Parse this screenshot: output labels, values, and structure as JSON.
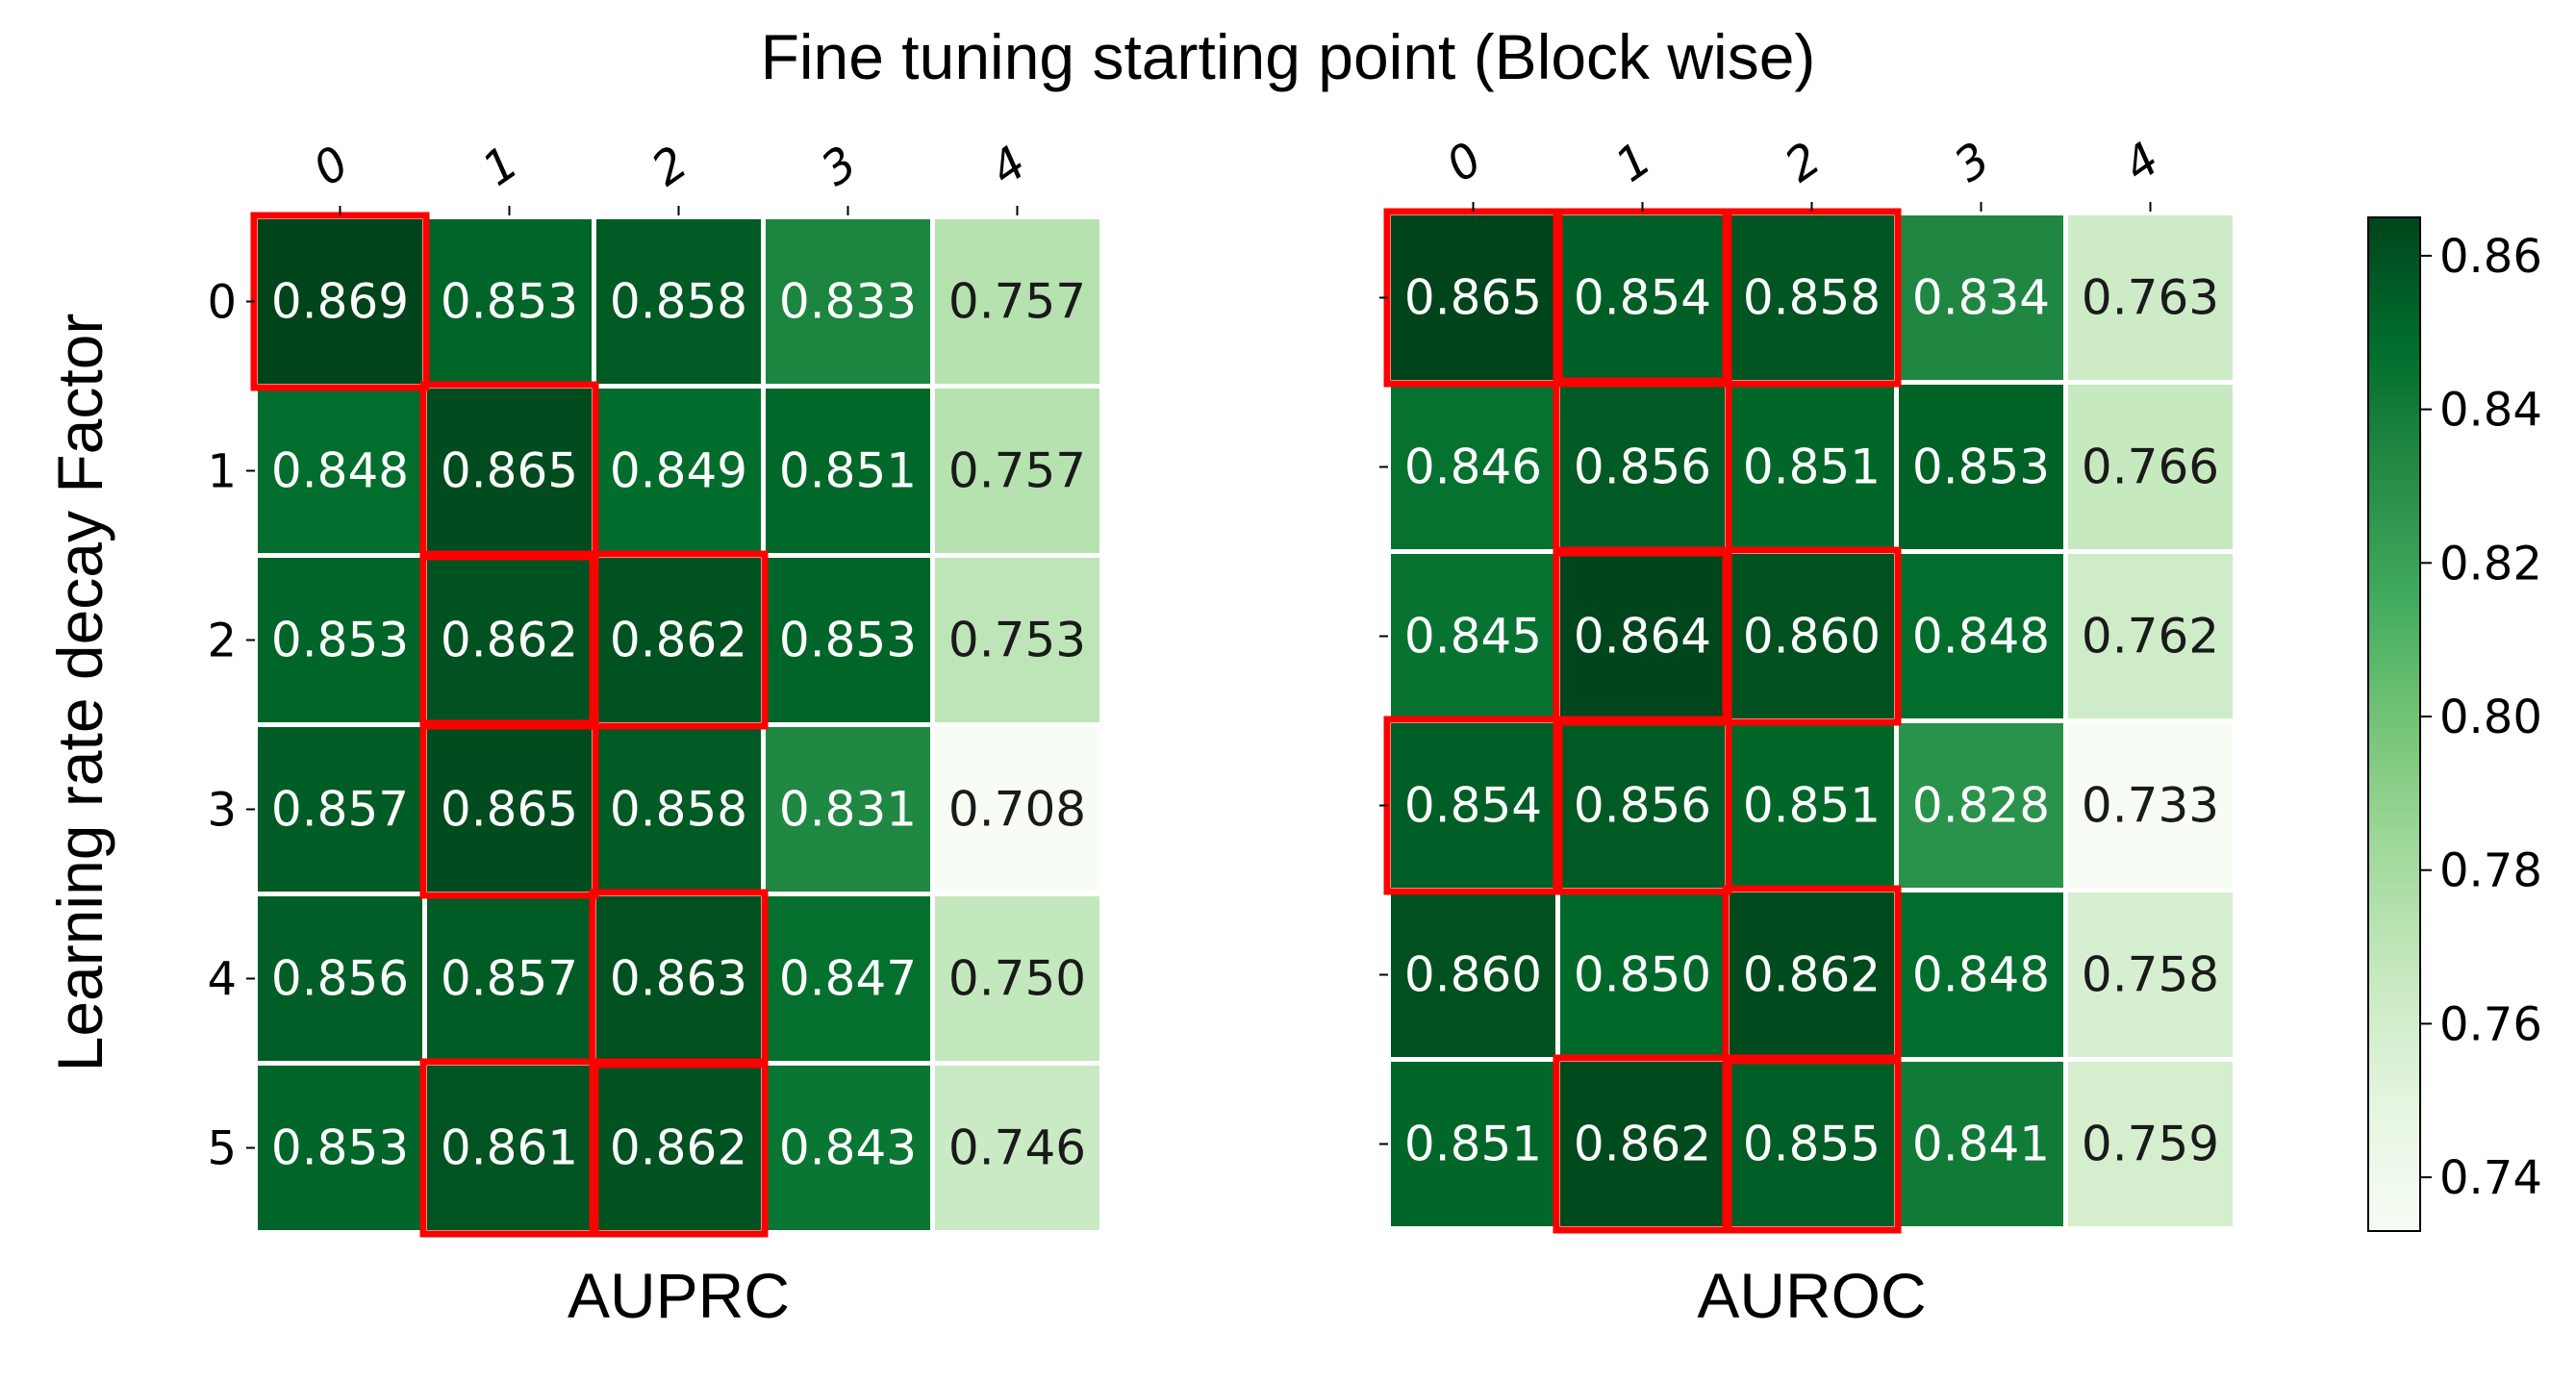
{
  "figure": {
    "title": "Fine tuning starting point (Block wise)",
    "ylabel": "Learning rate decay Factor"
  },
  "chart_data": [
    {
      "type": "heatmap",
      "title": "AUPRC",
      "x_categories": [
        "0",
        "1",
        "2",
        "3",
        "4"
      ],
      "y_categories": [
        "0",
        "1",
        "2",
        "3",
        "4",
        "5"
      ],
      "values": [
        [
          0.869,
          0.853,
          0.858,
          0.833,
          0.757
        ],
        [
          0.848,
          0.865,
          0.849,
          0.851,
          0.757
        ],
        [
          0.853,
          0.862,
          0.862,
          0.853,
          0.753
        ],
        [
          0.857,
          0.865,
          0.858,
          0.831,
          0.708
        ],
        [
          0.856,
          0.857,
          0.863,
          0.847,
          0.75
        ],
        [
          0.853,
          0.861,
          0.862,
          0.843,
          0.746
        ]
      ],
      "labels": [
        [
          "0.869",
          "0.853",
          "0.858",
          "0.833",
          "0.757"
        ],
        [
          "0.848",
          "0.865",
          "0.849",
          "0.851",
          "0.757"
        ],
        [
          "0.853",
          "0.862",
          "0.862",
          "0.853",
          "0.753"
        ],
        [
          "0.857",
          "0.865",
          "0.858",
          "0.831",
          "0.708"
        ],
        [
          "0.856",
          "0.857",
          "0.863",
          "0.847",
          "0.750"
        ],
        [
          "0.853",
          "0.861",
          "0.862",
          "0.843",
          "0.746"
        ]
      ],
      "highlighted_cells": [
        [
          0,
          0
        ],
        [
          1,
          1
        ],
        [
          2,
          1
        ],
        [
          2,
          2
        ],
        [
          3,
          1
        ],
        [
          4,
          2
        ],
        [
          5,
          1
        ],
        [
          5,
          2
        ]
      ],
      "highlight_color": "#ff0000",
      "colormap": "Greens",
      "vmin": 0.708,
      "vmax": 0.869
    },
    {
      "type": "heatmap",
      "title": "AUROC",
      "x_categories": [
        "0",
        "1",
        "2",
        "3",
        "4"
      ],
      "y_categories": [
        "0",
        "1",
        "2",
        "3",
        "4",
        "5"
      ],
      "values": [
        [
          0.865,
          0.854,
          0.858,
          0.834,
          0.763
        ],
        [
          0.846,
          0.856,
          0.851,
          0.853,
          0.766
        ],
        [
          0.845,
          0.864,
          0.86,
          0.848,
          0.762
        ],
        [
          0.854,
          0.856,
          0.851,
          0.828,
          0.733
        ],
        [
          0.86,
          0.85,
          0.862,
          0.848,
          0.758
        ],
        [
          0.851,
          0.862,
          0.855,
          0.841,
          0.759
        ]
      ],
      "labels": [
        [
          "0.865",
          "0.854",
          "0.858",
          "0.834",
          "0.763"
        ],
        [
          "0.846",
          "0.856",
          "0.851",
          "0.853",
          "0.766"
        ],
        [
          "0.845",
          "0.864",
          "0.860",
          "0.848",
          "0.762"
        ],
        [
          "0.854",
          "0.856",
          "0.851",
          "0.828",
          "0.733"
        ],
        [
          "0.860",
          "0.850",
          "0.862",
          "0.848",
          "0.758"
        ],
        [
          "0.851",
          "0.862",
          "0.855",
          "0.841",
          "0.759"
        ]
      ],
      "highlighted_cells": [
        [
          0,
          0
        ],
        [
          0,
          1
        ],
        [
          0,
          2
        ],
        [
          1,
          1
        ],
        [
          2,
          1
        ],
        [
          2,
          2
        ],
        [
          3,
          0
        ],
        [
          3,
          1
        ],
        [
          4,
          2
        ],
        [
          5,
          1
        ],
        [
          5,
          2
        ]
      ],
      "highlight_color": "#ff0000",
      "colormap": "Greens",
      "vmin": 0.733,
      "vmax": 0.865
    }
  ],
  "colorbar": {
    "colormap": "Greens",
    "range": [
      0.733,
      0.865
    ],
    "ticks": [
      0.74,
      0.76,
      0.78,
      0.8,
      0.82,
      0.84,
      0.86
    ],
    "tick_labels": [
      "0.74",
      "0.76",
      "0.78",
      "0.80",
      "0.82",
      "0.84",
      "0.86"
    ]
  }
}
